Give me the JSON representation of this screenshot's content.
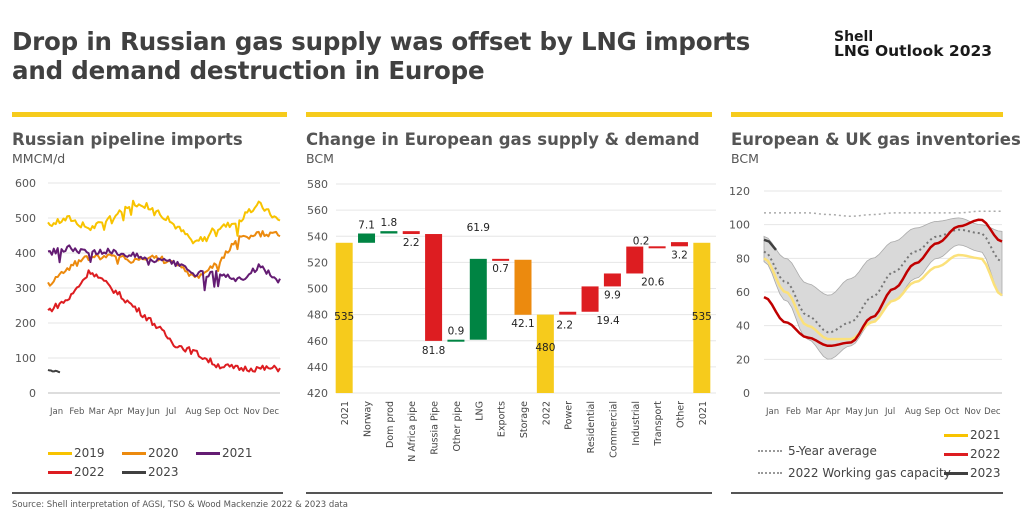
{
  "header": {
    "title_line1": "Drop in Russian gas supply was offset by LNG imports",
    "title_line2": "and demand destruction in Europe",
    "brand_line1": "Shell",
    "brand_line2": "LNG Outlook 2023"
  },
  "colors": {
    "accent_yellow": "#f6cb1c",
    "y2019": "#f8c300",
    "y2020": "#ec8a0e",
    "y2021": "#641c73",
    "y2022": "#dd1d21",
    "y2023": "#404040",
    "green": "#008443",
    "red": "#dd1d21",
    "orange": "#ec8a0e",
    "inv2021": "#fbe17a",
    "inv2022": "#c00000",
    "band": "#d9d9d9"
  },
  "source": "Source: Shell interpretation of AGSI, TSO & Wood Mackenzie 2022 & 2023 data",
  "chart_data": [
    {
      "type": "line",
      "title": "Russian pipeline imports",
      "ylabel": "MMCM/d",
      "ylim": [
        0,
        600
      ],
      "yticks": [
        0,
        100,
        200,
        300,
        400,
        500,
        600
      ],
      "x": [
        "Jan",
        "Feb",
        "Mar",
        "Apr",
        "May",
        "Jun",
        "Jul",
        "Aug",
        "Sep",
        "Oct",
        "Nov",
        "Dec"
      ],
      "grid": true,
      "legend": "bottom",
      "series": [
        {
          "name": "2019",
          "values": [
            480,
            500,
            470,
            500,
            545,
            530,
            480,
            430,
            470,
            490,
            540,
            490
          ]
        },
        {
          "name": "2020",
          "values": [
            310,
            360,
            390,
            390,
            380,
            390,
            370,
            330,
            370,
            440,
            455,
            455
          ]
        },
        {
          "name": "2021",
          "values": [
            400,
            415,
            400,
            405,
            395,
            380,
            370,
            340,
            340,
            320,
            360,
            320
          ]
        },
        {
          "name": "2022",
          "values": [
            235,
            270,
            350,
            300,
            250,
            200,
            140,
            115,
            80,
            70,
            70,
            70
          ]
        },
        {
          "name": "2023",
          "values": [
            65,
            60
          ]
        }
      ]
    },
    {
      "type": "bar",
      "subtype": "waterfall",
      "title": "Change in European gas supply & demand",
      "ylabel": "BCM",
      "ylim": [
        420,
        580
      ],
      "yticks": [
        420,
        440,
        460,
        480,
        500,
        520,
        540,
        560,
        580
      ],
      "grid": true,
      "categories": [
        "2021",
        "Norway",
        "Dom prod",
        "N Africa pipe",
        "Russia Pipe",
        "Other pipe",
        "LNG",
        "Exports",
        "Storage",
        "2022",
        "Power",
        "Residential",
        "Commercial",
        "Industrial",
        "Transport",
        "Other",
        "2021"
      ],
      "bars": [
        {
          "label": "535",
          "kind": "total",
          "from": 420,
          "to": 535,
          "label_pos": "inside"
        },
        {
          "label": "7.1",
          "kind": "up",
          "from": 535,
          "to": 542.1,
          "label_pos": "above"
        },
        {
          "label": "1.8",
          "kind": "up",
          "from": 542.1,
          "to": 543.9,
          "label_pos": "above"
        },
        {
          "label": "2.2",
          "kind": "down",
          "from": 543.9,
          "to": 541.7,
          "label_pos": "below"
        },
        {
          "label": "81.8",
          "kind": "down",
          "from": 541.7,
          "to": 459.9,
          "label_pos": "below"
        },
        {
          "label": "0.9",
          "kind": "up",
          "from": 459.9,
          "to": 460.8,
          "label_pos": "above"
        },
        {
          "label": "61.9",
          "kind": "up",
          "from": 460.8,
          "to": 522.7,
          "label_pos": "above"
        },
        {
          "label": "0.7",
          "kind": "down",
          "from": 522.7,
          "to": 522.0,
          "label_pos": "below"
        },
        {
          "label": "42.1",
          "kind": "storage",
          "from": 522.0,
          "to": 479.9,
          "label_pos": "below"
        },
        {
          "label": "480",
          "kind": "total",
          "from": 420,
          "to": 480,
          "label_pos": "inside"
        },
        {
          "label": "2.2",
          "kind": "down",
          "from": 480,
          "to": 482.2,
          "label_pos": "below"
        },
        {
          "label": "19.4",
          "kind": "down",
          "from": 482.2,
          "to": 501.6,
          "label_pos": "belowright"
        },
        {
          "label": "9.9",
          "kind": "down",
          "from": 501.6,
          "to": 511.5,
          "label_pos": "below"
        },
        {
          "label": "20.6",
          "kind": "down",
          "from": 511.5,
          "to": 532.1,
          "label_pos": "belowright"
        },
        {
          "label": "0.2",
          "kind": "down",
          "from": 532.1,
          "to": 532.3,
          "label_pos": "above"
        },
        {
          "label": "3.2",
          "kind": "down",
          "from": 532.3,
          "to": 535.5,
          "label_pos": "below"
        },
        {
          "label": "535",
          "kind": "total",
          "from": 420,
          "to": 535,
          "label_pos": "inside"
        }
      ]
    },
    {
      "type": "area",
      "title": "European & UK gas inventories",
      "ylabel": "BCM",
      "ylim": [
        0,
        120
      ],
      "yticks": [
        0,
        20,
        40,
        60,
        80,
        100,
        120
      ],
      "x": [
        "Jan",
        "Feb",
        "Mar",
        "Apr",
        "May",
        "Jun",
        "Jul",
        "Aug",
        "Sep",
        "Oct",
        "Nov",
        "Dec"
      ],
      "grid": true,
      "legend": "bottom",
      "band": {
        "name": "5-year range",
        "lower": [
          78,
          55,
          32,
          20,
          28,
          42,
          55,
          68,
          80,
          88,
          84,
          58
        ],
        "upper": [
          93,
          80,
          65,
          58,
          68,
          80,
          90,
          98,
          102,
          104,
          100,
          96
        ]
      },
      "series": [
        {
          "name": "5-Year average",
          "style": "dotted",
          "values": [
            84,
            66,
            46,
            36,
            42,
            57,
            72,
            84,
            93,
            97,
            95,
            78
          ]
        },
        {
          "name": "2022 Working gas capacity",
          "style": "dotted",
          "values": [
            107,
            107,
            107,
            106,
            105,
            106,
            107,
            107,
            107,
            107,
            108,
            108
          ]
        },
        {
          "name": "2021",
          "values": [
            80,
            60,
            40,
            32,
            32,
            42,
            55,
            66,
            75,
            82,
            80,
            58
          ]
        },
        {
          "name": "2022",
          "values": [
            57,
            42,
            33,
            28,
            30,
            45,
            62,
            77,
            89,
            99,
            103,
            90
          ]
        },
        {
          "name": "2023",
          "values": [
            91,
            85
          ]
        }
      ],
      "legend_labels": {
        "avg": "5-Year average",
        "cap": "2022 Working gas capacity",
        "y2021": "2021",
        "y2022": "2022",
        "y2023": "2023"
      }
    }
  ],
  "panels": {
    "p1": {
      "title": "Russian pipeline imports",
      "unit": "MMCM/d"
    },
    "p2": {
      "title": "Change in European gas supply & demand",
      "unit": "BCM"
    },
    "p3": {
      "title": "European & UK gas inventories",
      "unit": "BCM"
    }
  },
  "legend1": {
    "y2019": "2019",
    "y2020": "2020",
    "y2021": "2021",
    "y2022": "2022",
    "y2023": "2023"
  }
}
